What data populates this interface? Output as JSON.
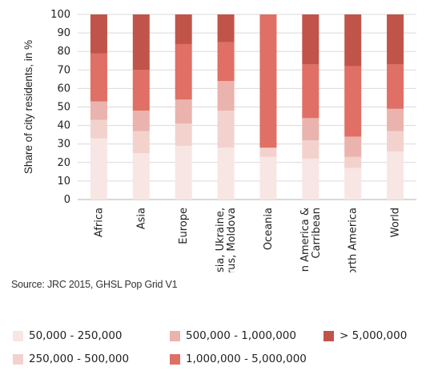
{
  "chart_data": {
    "type": "bar",
    "stacked": true,
    "ylabel": "Share of city residents, in %",
    "xlabel": "",
    "ylim": [
      0,
      100
    ],
    "yticks": [
      0,
      10,
      20,
      30,
      40,
      50,
      60,
      70,
      80,
      90,
      100
    ],
    "grid": "horizontal",
    "legend_position": "bottom",
    "categories": [
      "Africa",
      "Asia",
      "Europe",
      "Russia, Ukraine, Belarus, Moldova",
      "Oceania",
      "Latin America & Carribean",
      "North America",
      "World"
    ],
    "series": [
      {
        "name": "50,000 - 250,000",
        "color": "#f7e6e4",
        "values": [
          33,
          25,
          29,
          28,
          23,
          22,
          17,
          26
        ]
      },
      {
        "name": "250,000 - 500,000",
        "color": "#f3d2ce",
        "values": [
          10,
          12,
          12,
          20,
          5,
          10,
          6,
          11
        ]
      },
      {
        "name": "500,000 - 1,000,000",
        "color": "#ebb3ad",
        "values": [
          10,
          11,
          13,
          16,
          0,
          12,
          11,
          12
        ]
      },
      {
        "name": "1,000,000 - 5,000,000",
        "color": "#e06f65",
        "values": [
          26,
          22,
          30,
          21,
          72,
          29,
          38,
          24
        ]
      },
      {
        "name": "> 5,000,000",
        "color": "#c1544a",
        "values": [
          21,
          30,
          16,
          15,
          0,
          27,
          28,
          27
        ]
      }
    ]
  },
  "source": "Source: JRC 2015, GHSL Pop Grid V1",
  "legend": [
    {
      "label": "50,000 - 250,000",
      "color": "#f7e6e4"
    },
    {
      "label": "250,000 - 500,000",
      "color": "#f3d2ce"
    },
    {
      "label": "500,000 - 1,000,000",
      "color": "#ebb3ad"
    },
    {
      "label": "1,000,000 - 5,000,000",
      "color": "#e06f65"
    },
    {
      "label": "> 5,000,000",
      "color": "#c1544a"
    }
  ]
}
